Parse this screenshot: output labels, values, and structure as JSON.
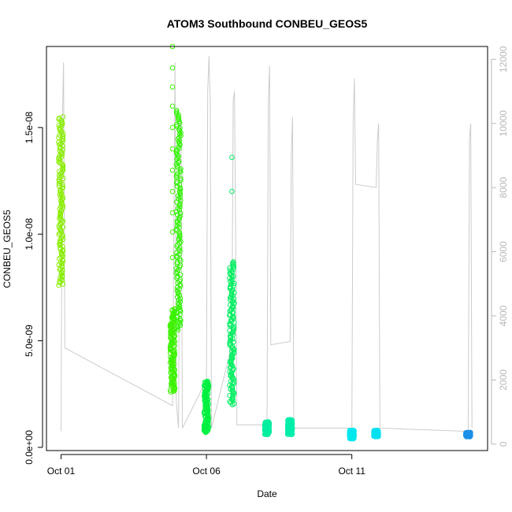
{
  "chart_data": {
    "type": "scatter",
    "title": "ATOM3 Southbound CONBEU_GEOS5",
    "xlabel": "Date",
    "ylabel": "CONBEU_GEOS5",
    "x_ticks": [
      "Oct 01",
      "Oct 06",
      "Oct 11"
    ],
    "y_ticks": [
      "0.0e+00",
      "5.0e-09",
      "1.0e-08",
      "1.5e-08"
    ],
    "y_tick_values": [
      0,
      5e-09,
      1e-08,
      1.5e-08
    ],
    "y2_ticks": [
      "0",
      "2000",
      "4000",
      "6000",
      "8000",
      "10000",
      "12000"
    ],
    "x_range_days": [
      "2016-09-30T12:00",
      "2016-10-15T16:00"
    ],
    "ylim": [
      -1.5e-10,
      1.88e-08
    ],
    "y2lim": [
      -200,
      12400
    ],
    "grid": false,
    "secondary_line_color": "#cccccc",
    "series": [
      {
        "x": "2016-10-01T00:00",
        "y_min": 7.6e-09,
        "y_max": 1.55e-08,
        "color": "#88ee00"
      },
      {
        "x": "2016-10-04T20:00",
        "y_min": 2.6e-09,
        "y_max": 6.5e-09,
        "color": "#3ef200"
      },
      {
        "x": "2016-10-04T20:00",
        "y_sparse": [
          8.9e-09,
          1.01e-08,
          1.1e-08,
          1.2e-08,
          1.3e-08,
          1.4e-08,
          1.5e-08,
          1.6e-08,
          1.69e-08,
          1.78e-08,
          1.88e-08
        ],
        "color": "#3ef200"
      },
      {
        "x": "2016-10-05T01:00",
        "y_min": 5.5e-09,
        "y_max": 1.58e-08,
        "color": "#2ef300"
      },
      {
        "x": "2016-10-06T00:00",
        "y_min": 7e-10,
        "y_max": 3.1e-09,
        "color": "#00f040"
      },
      {
        "x": "2016-10-06T21:00",
        "y_min": 2e-09,
        "y_max": 8.7e-09,
        "color": "#00ee60"
      },
      {
        "x": "2016-10-06T21:00",
        "y_sparse": [
          1.2e-08,
          1.36e-08
        ],
        "color": "#00ee60"
      },
      {
        "x": "2016-10-08T02:00",
        "y_min": 6e-10,
        "y_max": 1.2e-09,
        "color": "#00eea0"
      },
      {
        "x": "2016-10-08T21:00",
        "y_min": 6e-10,
        "y_max": 1.3e-09,
        "color": "#00eeaa"
      },
      {
        "x": "2016-10-11T00:00",
        "y_min": 4e-10,
        "y_max": 8e-10,
        "color": "#00e8ee"
      },
      {
        "x": "2016-10-11T20:00",
        "y_min": 5e-10,
        "y_max": 8e-10,
        "color": "#00e0f0"
      },
      {
        "x": "2016-10-15T00:00",
        "y_min": 5e-10,
        "y_max": 7e-10,
        "color": "#1c90e6"
      }
    ],
    "secondary_series": [
      {
        "x": "2016-10-01T00:00",
        "y2": [
          400,
          10000,
          11900,
          3000
        ]
      },
      {
        "x": "2016-10-04T20:00",
        "y2": [
          1200,
          6200,
          11900,
          1300
        ]
      },
      {
        "x": "2016-10-05T01:00",
        "y2": [
          500,
          10200,
          9800,
          500
        ]
      },
      {
        "x": "2016-10-06T00:00",
        "y2": [
          2000,
          11000,
          12100,
          10700,
          500
        ]
      },
      {
        "x": "2016-10-06T21:00",
        "y2": [
          3100,
          10700,
          11000,
          6500,
          600
        ]
      },
      {
        "x": "2016-10-08T02:00",
        "y2": [
          600,
          10600,
          11800,
          3100
        ]
      },
      {
        "x": "2016-10-08T21:00",
        "y2": [
          3200,
          9000,
          10200,
          500
        ]
      },
      {
        "x": "2016-10-11T00:00",
        "y2": [
          500,
          10000,
          11400,
          8100
        ]
      },
      {
        "x": "2016-10-11T20:00",
        "y2": [
          8000,
          9500,
          10000,
          500
        ]
      },
      {
        "x": "2016-10-15T00:00",
        "y2": [
          400,
          9500,
          10000,
          500
        ]
      }
    ]
  }
}
